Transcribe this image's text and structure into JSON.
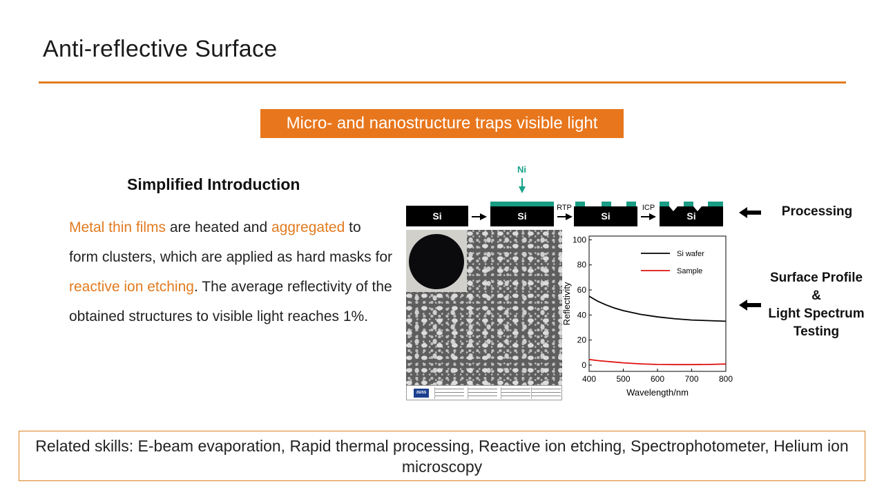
{
  "slide": {
    "title": "Anti-reflective Surface",
    "banner": "Micro- and nanostructure traps visible light"
  },
  "intro": {
    "heading": "Simplified Introduction",
    "text_parts": [
      {
        "text": "Metal thin films",
        "highlight": true
      },
      {
        "text": " are heated and ",
        "highlight": false
      },
      {
        "text": "aggregated",
        "highlight": true
      },
      {
        "text": " to form clusters, which are applied as hard masks for ",
        "highlight": false
      },
      {
        "text": "reactive ion etching",
        "highlight": true
      },
      {
        "text": ". The average reflectivity of the obtained structures to visible light reaches 1%.",
        "highlight": false
      }
    ],
    "highlight_color": "#e27b1f"
  },
  "process_diagram": {
    "deposit_label": "Ni",
    "substrate_label": "Si",
    "steps": [
      "RTP",
      "ICP"
    ],
    "film_color": "#1a9c85"
  },
  "side_labels": {
    "processing": "Processing",
    "testing": [
      "Surface Profile",
      "&",
      "Light Spectrum",
      "Testing"
    ]
  },
  "sem_logo_text": "ZEISS",
  "chart_data": {
    "type": "line",
    "xlabel": "Wavelength/nm",
    "ylabel": "Reflectivity",
    "xlim": [
      400,
      800
    ],
    "ylim": [
      -5,
      103
    ],
    "xticks": [
      400,
      500,
      600,
      700,
      800
    ],
    "yticks": [
      0,
      20,
      40,
      60,
      80,
      100
    ],
    "grid": false,
    "legend_position": "top-right",
    "series": [
      {
        "name": "Si wafer",
        "color": "#000000",
        "x": [
          400,
          425,
          450,
          475,
          500,
          550,
          600,
          650,
          700,
          750,
          800
        ],
        "y": [
          55,
          51,
          48,
          45.5,
          43.5,
          40.5,
          38.5,
          37,
          36,
          35.5,
          35
        ]
      },
      {
        "name": "Sample",
        "color": "#e01010",
        "x": [
          400,
          425,
          450,
          475,
          500,
          550,
          600,
          650,
          700,
          750,
          800
        ],
        "y": [
          4.5,
          3.6,
          3,
          2.4,
          1.8,
          1,
          0.5,
          0.4,
          0.4,
          0.5,
          0.9
        ]
      }
    ]
  },
  "skills": "Related skills: E-beam evaporation, Rapid thermal processing, Reactive ion etching, Spectrophotometer, Helium ion microscopy"
}
